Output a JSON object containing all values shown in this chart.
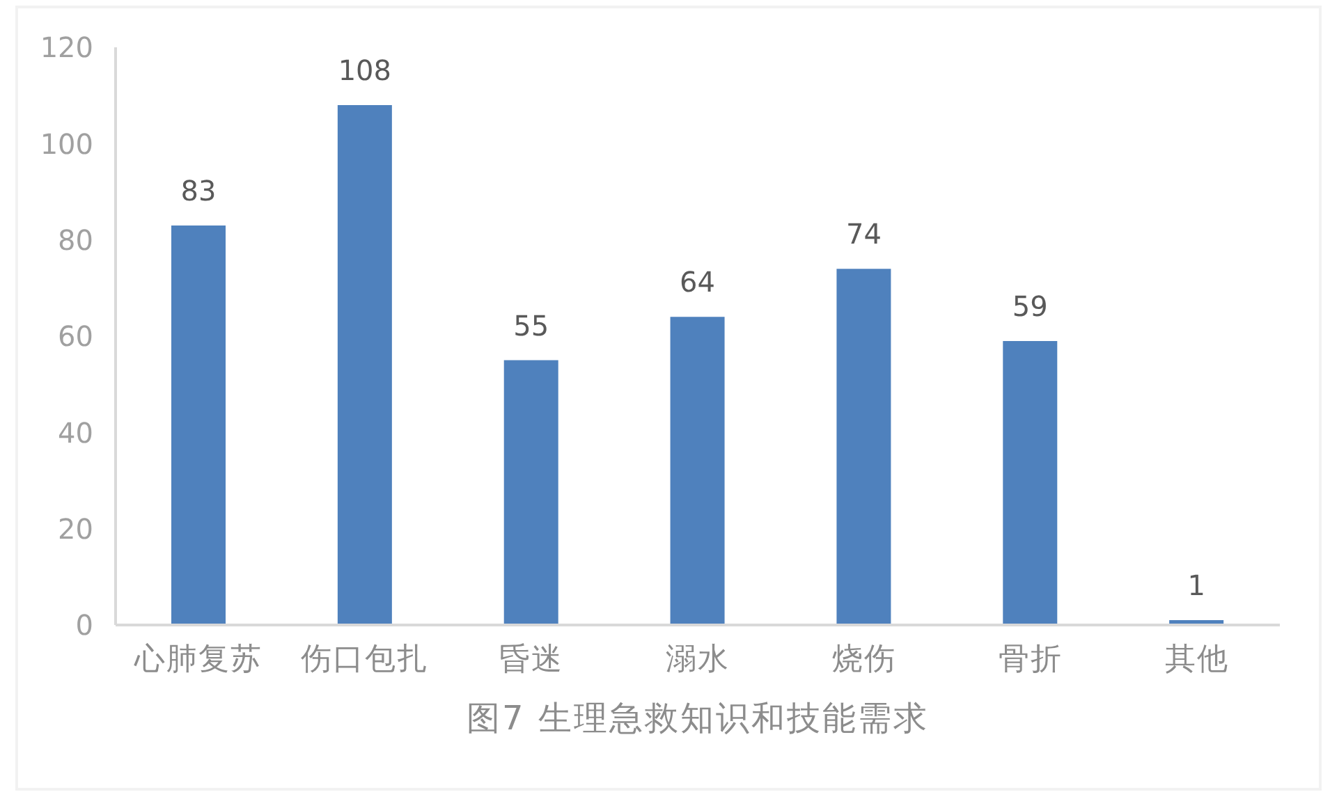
{
  "chart_data": {
    "type": "bar",
    "title": "图7 生理急救知识和技能需求",
    "categories": [
      "心肺复苏",
      "伤口包扎",
      "昏迷",
      "溺水",
      "烧伤",
      "骨折",
      "其他"
    ],
    "values": [
      83,
      108,
      55,
      64,
      74,
      59,
      1
    ],
    "color": "#4f81bd",
    "ylim": [
      0,
      120
    ],
    "yticks": [
      0,
      20,
      40,
      60,
      80,
      100,
      120
    ],
    "data_labels": true
  }
}
